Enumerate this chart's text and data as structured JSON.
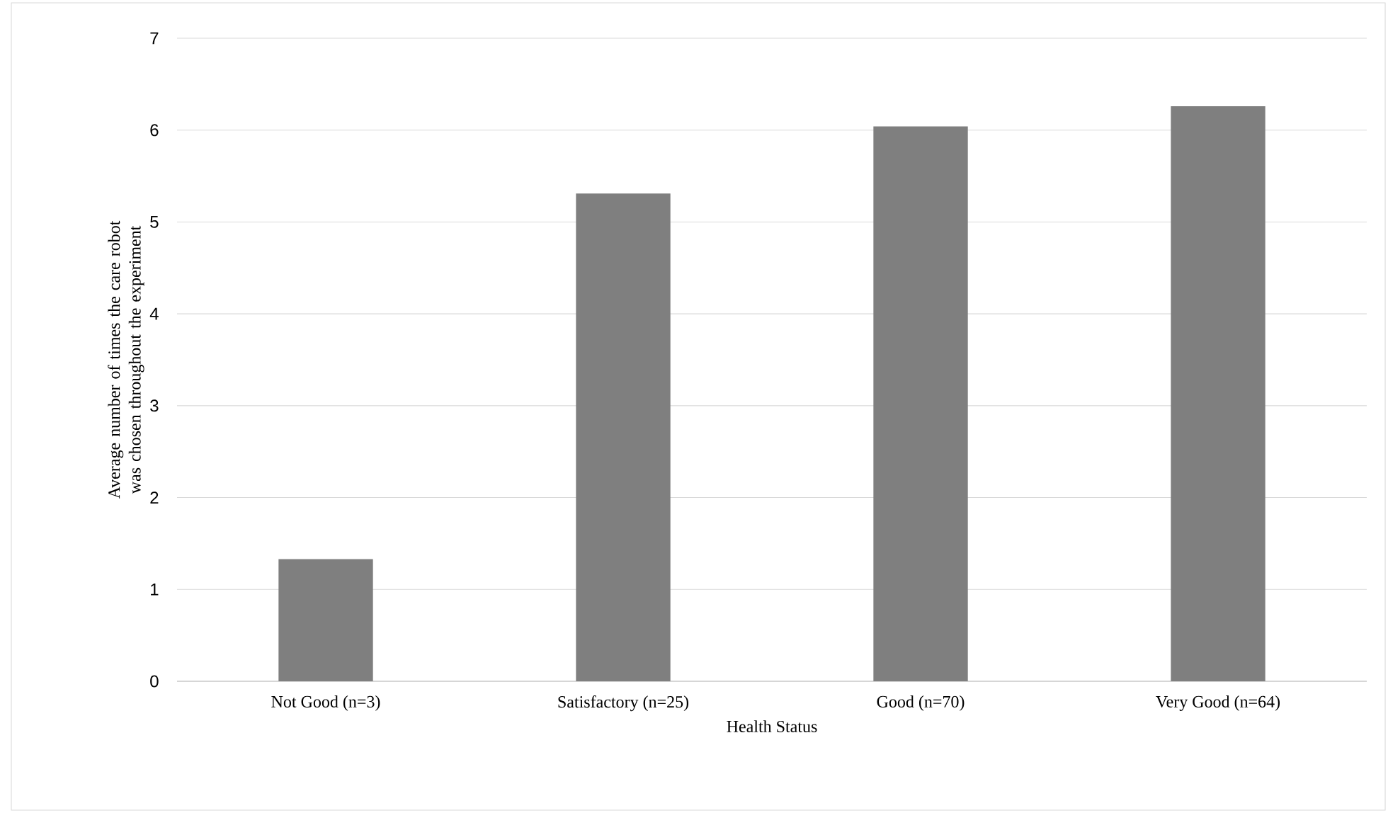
{
  "chart_data": {
    "type": "bar",
    "xlabel": "Health Status",
    "ylabel": "Average number of times the care robot was chosen throughout the experiment",
    "categories": [
      "Not Good (n=3)",
      "Satisfactory (n=25)",
      "Good (n=70)",
      "Very Good (n=64)"
    ],
    "values": [
      1.33,
      5.31,
      6.04,
      6.26
    ],
    "color": "#7f7f7f",
    "ylim": [
      0,
      7
    ],
    "yticks": [
      0,
      1,
      2,
      3,
      4,
      5,
      6,
      7
    ],
    "grid": "y"
  }
}
